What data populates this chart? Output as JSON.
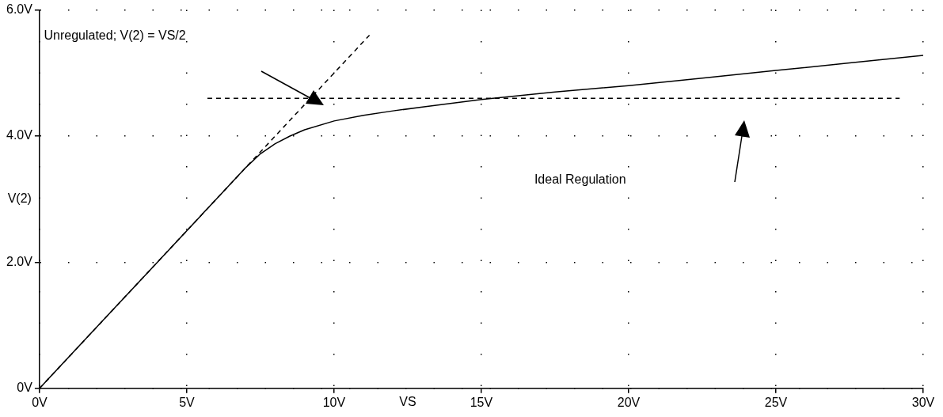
{
  "chart_data": {
    "type": "line",
    "xlabel": "VS",
    "ylabel": "V(2)",
    "xlim": [
      0,
      30
    ],
    "ylim": [
      0,
      6
    ],
    "xticks": [
      {
        "value": 0,
        "label": "0V"
      },
      {
        "value": 5,
        "label": "5V"
      },
      {
        "value": 10,
        "label": "10V"
      },
      {
        "value": 15,
        "label": "15V"
      },
      {
        "value": 20,
        "label": "20V"
      },
      {
        "value": 25,
        "label": "25V"
      },
      {
        "value": 30,
        "label": "30V"
      }
    ],
    "yticks": [
      {
        "value": 0,
        "label": "0V"
      },
      {
        "value": 2,
        "label": "2.0V"
      },
      {
        "value": 4,
        "label": "4.0V"
      },
      {
        "value": 6,
        "label": "6.0V"
      }
    ],
    "grid": true,
    "marker": "none",
    "series": [
      {
        "color": "#000000",
        "line_style": "solid",
        "x": [
          0,
          2,
          4,
          6,
          7,
          7.5,
          8,
          8.5,
          9,
          10,
          11,
          12,
          13,
          14,
          15,
          17.5,
          20,
          22.5,
          25,
          27.5,
          30
        ],
        "values": [
          0,
          1,
          2,
          3,
          3.5,
          3.72,
          3.88,
          4.0,
          4.1,
          4.24,
          4.33,
          4.4,
          4.46,
          4.52,
          4.58,
          4.7,
          4.8,
          4.92,
          5.04,
          5.16,
          5.28
        ]
      },
      {
        "color": "#000000",
        "line_style": "dashed",
        "x": [
          0,
          11.2
        ],
        "values": [
          0,
          5.6
        ]
      },
      {
        "color": "#000000",
        "line_style": "dashed",
        "x": [
          5.7,
          29.2
        ],
        "values": [
          4.6,
          4.6
        ]
      }
    ],
    "annotations": [
      "Unregulated; V(2) = VS/2",
      "Ideal Regulation"
    ]
  }
}
